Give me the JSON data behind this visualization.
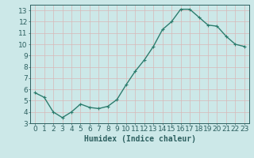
{
  "x": [
    0,
    1,
    2,
    3,
    4,
    5,
    6,
    7,
    8,
    9,
    10,
    11,
    12,
    13,
    14,
    15,
    16,
    17,
    18,
    19,
    20,
    21,
    22,
    23
  ],
  "y": [
    5.7,
    5.3,
    4.0,
    3.5,
    4.0,
    4.7,
    4.4,
    4.3,
    4.5,
    5.1,
    6.4,
    7.6,
    8.6,
    9.8,
    11.3,
    12.0,
    13.1,
    13.1,
    12.4,
    11.7,
    11.6,
    10.7,
    10.0,
    9.8
  ],
  "line_color": "#2d7d6e",
  "marker": "+",
  "marker_size": 3,
  "xlabel": "Humidex (Indice chaleur)",
  "xlim": [
    -0.5,
    23.5
  ],
  "ylim": [
    3,
    13.5
  ],
  "yticks": [
    3,
    4,
    5,
    6,
    7,
    8,
    9,
    10,
    11,
    12,
    13
  ],
  "xticks": [
    0,
    1,
    2,
    3,
    4,
    5,
    6,
    7,
    8,
    9,
    10,
    11,
    12,
    13,
    14,
    15,
    16,
    17,
    18,
    19,
    20,
    21,
    22,
    23
  ],
  "bg_color": "#cce8e8",
  "grid_color": "#e8e8e8",
  "font_color": "#2d6060",
  "xlabel_fontsize": 7,
  "tick_fontsize": 6.5,
  "linewidth": 1.0
}
